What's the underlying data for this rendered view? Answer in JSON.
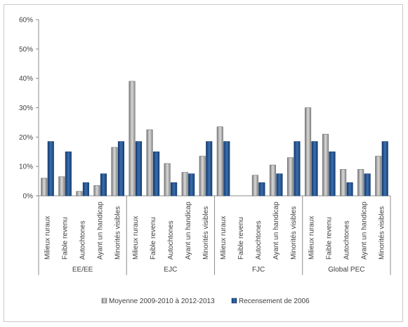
{
  "chart_data": {
    "type": "bar",
    "title": "",
    "xlabel": "",
    "ylabel": "",
    "ylim": [
      0,
      60
    ],
    "y_ticks": [
      "0%",
      "10%",
      "20%",
      "30%",
      "40%",
      "50%",
      "60%"
    ],
    "grid": false,
    "legend_position": "bottom",
    "groups": [
      {
        "name": "EE/EE",
        "categories": [
          "Milieux ruraux",
          "Faible revenu",
          "Autochtones",
          "Ayant un handicap",
          "Minorités visibles"
        ]
      },
      {
        "name": "EJC",
        "categories": [
          "Milieux ruraux",
          "Faible revenu",
          "Autochtones",
          "Ayant un handicap",
          "Minorités visibles"
        ]
      },
      {
        "name": "FJC",
        "categories": [
          "Milieux ruraux",
          "Faible revenu",
          "Autochtones",
          "Ayant un handicap",
          "Minorités visibles"
        ]
      },
      {
        "name": "Global PEC",
        "categories": [
          "Milieux ruraux",
          "Faible revenu",
          "Autochtones",
          "Ayant un handicap",
          "Minorités visibles"
        ]
      }
    ],
    "series": [
      {
        "name": "Moyenne 2009-2010 à 2012-2013",
        "color": "#9a9a9a",
        "values": [
          6,
          6.5,
          1.5,
          3.5,
          16.5,
          39,
          22.5,
          11,
          8,
          13.5,
          23.5,
          0,
          7,
          10.5,
          13,
          30,
          21,
          9,
          9,
          13.5
        ]
      },
      {
        "name": "Recensement de 2006",
        "color": "#1f4e8c",
        "values": [
          18.5,
          15,
          4.5,
          7.5,
          18.5,
          18.5,
          15,
          4.5,
          7.5,
          18.5,
          18.5,
          0,
          4.5,
          7.5,
          18.5,
          18.5,
          15,
          4.5,
          7.5,
          18.5
        ]
      }
    ]
  }
}
